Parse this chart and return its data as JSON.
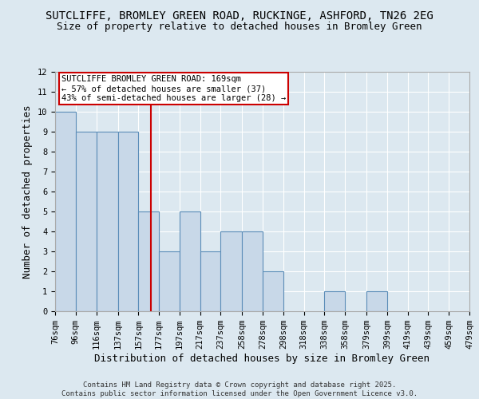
{
  "title_line1": "SUTCLIFFE, BROMLEY GREEN ROAD, RUCKINGE, ASHFORD, TN26 2EG",
  "title_line2": "Size of property relative to detached houses in Bromley Green",
  "xlabel": "Distribution of detached houses by size in Bromley Green",
  "ylabel": "Number of detached properties",
  "bin_edges": [
    76,
    96,
    116,
    137,
    157,
    177,
    197,
    217,
    237,
    258,
    278,
    298,
    318,
    338,
    358,
    379,
    399,
    419,
    439,
    459,
    479
  ],
  "bar_heights": [
    10,
    9,
    9,
    9,
    5,
    3,
    5,
    3,
    4,
    4,
    2,
    0,
    0,
    1,
    0,
    1,
    0,
    0,
    0,
    0
  ],
  "bar_color": "#c8d8e8",
  "bar_edgecolor": "#5b8db8",
  "vline_x": 169,
  "vline_color": "#cc0000",
  "annotation_text": "SUTCLIFFE BROMLEY GREEN ROAD: 169sqm\n← 57% of detached houses are smaller (37)\n43% of semi-detached houses are larger (28) →",
  "annotation_box_edgecolor": "#cc0000",
  "annotation_box_facecolor": "#ffffff",
  "ylim": [
    0,
    12
  ],
  "yticks": [
    0,
    1,
    2,
    3,
    4,
    5,
    6,
    7,
    8,
    9,
    10,
    11,
    12
  ],
  "background_color": "#dce8f0",
  "plot_bg_color": "#dce8f0",
  "grid_color": "#ffffff",
  "footer_text": "Contains HM Land Registry data © Crown copyright and database right 2025.\nContains public sector information licensed under the Open Government Licence v3.0.",
  "title_fontsize": 10,
  "axis_label_fontsize": 9,
  "tick_fontsize": 7.5,
  "annotation_fontsize": 7.5,
  "footer_fontsize": 6.5
}
